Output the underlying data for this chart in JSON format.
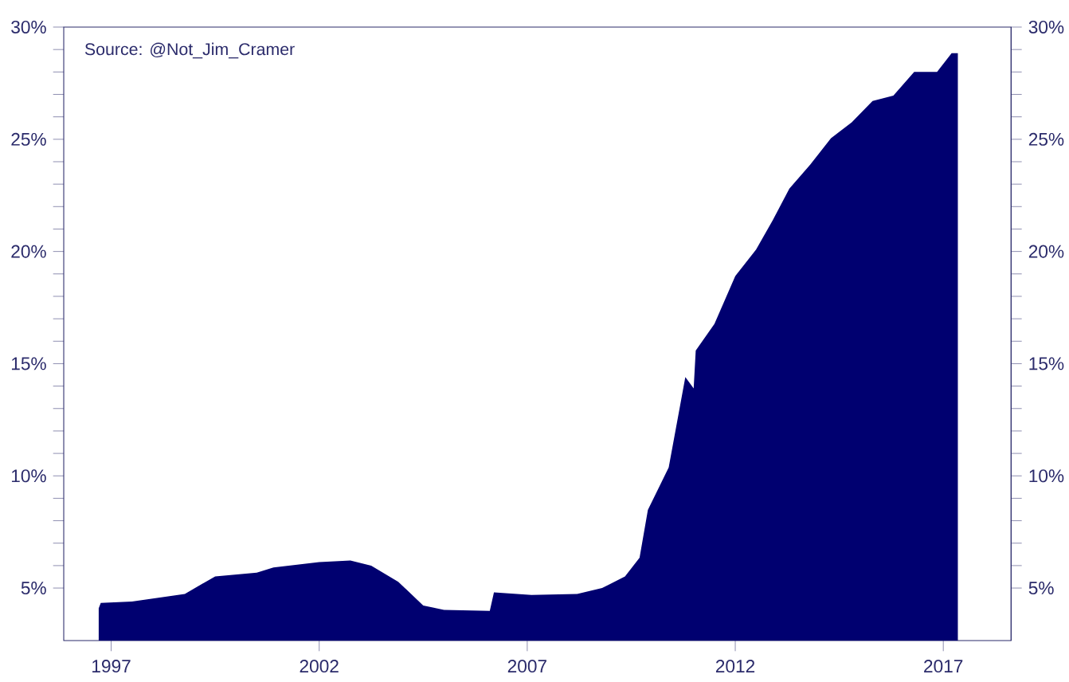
{
  "chart_data": {
    "type": "area",
    "annotations": [
      "Source: @Not_Jim_Cramer"
    ],
    "x": [
      1996.7,
      1996.75,
      1997.5,
      1998.77,
      1999.5,
      2000.5,
      2000.9,
      2002.0,
      2002.75,
      2003.25,
      2003.9,
      2004.5,
      2005.0,
      2006.1,
      2006.2,
      2007.1,
      2008.2,
      2008.8,
      2009.35,
      2009.7,
      2009.9,
      2010.4,
      2010.8,
      2011.0,
      2011.05,
      2011.5,
      2012.0,
      2012.5,
      2012.9,
      2013.3,
      2013.8,
      2014.3,
      2014.8,
      2015.3,
      2015.8,
      2016.3,
      2016.85,
      2017.2,
      2017.35
    ],
    "series": [
      {
        "color": "#000070",
        "values": [
          4.1,
          4.34,
          4.4,
          4.74,
          5.52,
          5.69,
          5.92,
          6.16,
          6.23,
          6.0,
          5.28,
          4.22,
          4.03,
          3.98,
          4.81,
          4.69,
          4.74,
          5.0,
          5.52,
          6.35,
          8.48,
          10.37,
          14.4,
          13.9,
          15.58,
          16.77,
          18.9,
          20.08,
          21.39,
          22.8,
          23.87,
          25.05,
          25.76,
          26.71,
          26.95,
          28.0,
          28.0,
          28.84,
          28.84
        ]
      }
    ],
    "xlim": [
      1995.86,
      2018.63
    ],
    "xticks": [
      1997,
      2002,
      2007,
      2012,
      2017
    ],
    "ylim": [
      2.66,
      30
    ],
    "yticks": [
      {
        "value": 5,
        "label": "5%"
      },
      {
        "value": 10,
        "label": "10%"
      },
      {
        "value": 15,
        "label": "15%"
      },
      {
        "value": 20,
        "label": "20%"
      },
      {
        "value": 25,
        "label": "25%"
      },
      {
        "value": 30,
        "label": "30%"
      }
    ],
    "y2lim": [
      2.66,
      30
    ],
    "y2ticks": [
      {
        "value": 5,
        "label": "5%"
      },
      {
        "value": 10,
        "label": "10%"
      },
      {
        "value": 15,
        "label": "15%"
      },
      {
        "value": 20,
        "label": "20%"
      },
      {
        "value": 25,
        "label": "25%"
      },
      {
        "value": 30,
        "label": "30%"
      }
    ],
    "grid": false
  }
}
